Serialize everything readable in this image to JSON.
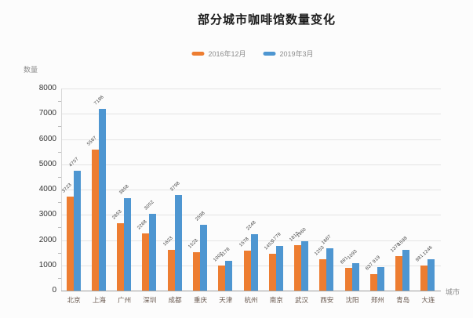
{
  "title": "部分城市咖啡馆数量变化",
  "axes": {
    "y_label": "数量",
    "x_label": "城市",
    "y_ticks": [
      0,
      1000,
      2000,
      3000,
      4000,
      5000,
      6000,
      7000,
      8000
    ]
  },
  "colors": {
    "series_2016": "#ED7D31",
    "series_2019": "#4E96D1",
    "gridline": "#e4e4e4",
    "baseline": "#9e9e9e",
    "y_axis_line": "#d9d9d9",
    "minor_tick": "#bdbdbd",
    "tick_text": "#333333",
    "city_text": "#6a5a50",
    "muted_text": "#8c8c8c",
    "value_text": "#404040",
    "title_text": "#1a1a1a",
    "background": "#fcfcfc"
  },
  "chart_data": {
    "type": "bar",
    "title": "部分城市咖啡馆数量变化",
    "xlabel": "城市",
    "ylabel": "数量",
    "ylim": [
      0,
      8000
    ],
    "grid": true,
    "legend_position": "top",
    "categories": [
      "北京",
      "上海",
      "广州",
      "深圳",
      "成都",
      "重庆",
      "天津",
      "杭州",
      "南京",
      "武汉",
      "西安",
      "沈阳",
      "郑州",
      "青岛",
      "大连"
    ],
    "series": [
      {
        "name": "2016年12月",
        "color": "#ED7D31",
        "values": [
          3723,
          5567,
          2653,
          2268,
          1623,
          1523,
          1002,
          1578,
          1453,
          1813,
          1253,
          891,
          637,
          1378,
          981
        ]
      },
      {
        "name": "2019年3月",
        "color": "#4E96D1",
        "values": [
          4757,
          7186,
          3658,
          3052,
          3798,
          2598,
          1178,
          2248,
          1779,
          1960,
          1667,
          1093,
          919,
          1598,
          1246
        ]
      }
    ]
  }
}
